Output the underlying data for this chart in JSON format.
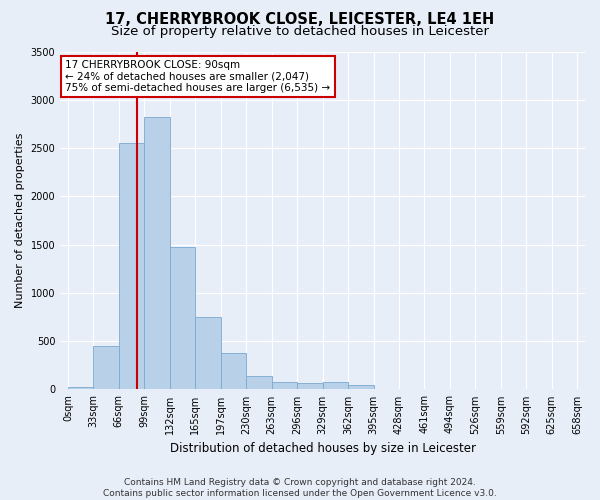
{
  "title": "17, CHERRYBROOK CLOSE, LEICESTER, LE4 1EH",
  "subtitle": "Size of property relative to detached houses in Leicester",
  "xlabel": "Distribution of detached houses by size in Leicester",
  "ylabel": "Number of detached properties",
  "bar_values": [
    30,
    450,
    2550,
    2820,
    1480,
    750,
    380,
    140,
    80,
    70,
    80,
    50,
    0,
    0,
    0,
    0,
    0,
    0,
    0,
    0
  ],
  "bar_labels": [
    "0sqm",
    "33sqm",
    "66sqm",
    "99sqm",
    "132sqm",
    "165sqm",
    "197sqm",
    "230sqm",
    "263sqm",
    "296sqm",
    "329sqm",
    "362sqm",
    "395sqm",
    "428sqm",
    "461sqm",
    "494sqm",
    "526sqm",
    "559sqm",
    "592sqm",
    "625sqm",
    "658sqm"
  ],
  "bar_color": "#b8d0e8",
  "bar_edge_color": "#7aaad0",
  "property_line_color": "#cc0000",
  "annotation_text": "17 CHERRYBROOK CLOSE: 90sqm\n← 24% of detached houses are smaller (2,047)\n75% of semi-detached houses are larger (6,535) →",
  "annotation_box_color": "#ffffff",
  "annotation_box_edge": "#cc0000",
  "ylim": [
    0,
    3500
  ],
  "yticks": [
    0,
    500,
    1000,
    1500,
    2000,
    2500,
    3000,
    3500
  ],
  "bg_color": "#e8eef8",
  "footer_line1": "Contains HM Land Registry data © Crown copyright and database right 2024.",
  "footer_line2": "Contains public sector information licensed under the Open Government Licence v3.0.",
  "title_fontsize": 10.5,
  "subtitle_fontsize": 9.5,
  "xlabel_fontsize": 8.5,
  "ylabel_fontsize": 8,
  "tick_fontsize": 7,
  "annot_fontsize": 7.5,
  "footer_fontsize": 6.5
}
